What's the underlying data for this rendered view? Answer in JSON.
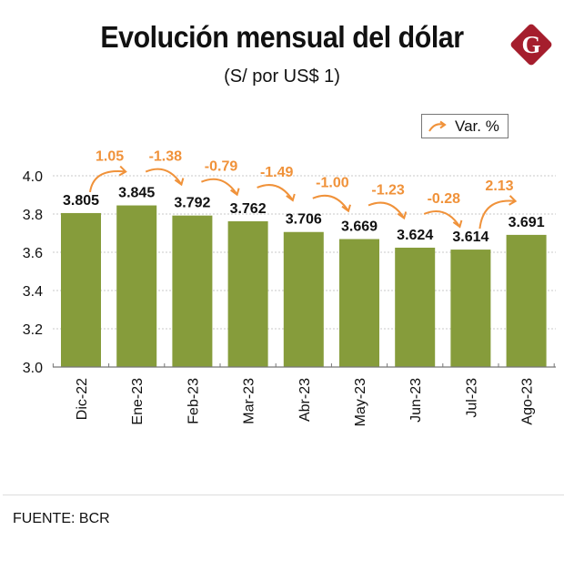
{
  "header": {
    "title": "Evolución mensual del dólar",
    "subtitle": "(S/ por US$ 1)",
    "logo_icon": "g-diamond-logo-icon",
    "logo_letter": "G"
  },
  "legend": {
    "icon": "curved-arrow-icon",
    "label": "Var. %"
  },
  "colors": {
    "bar": "#869c3b",
    "variation": "#f0923a",
    "logo": "#a51e2d",
    "text": "#111111",
    "grid": "#c8c8c8"
  },
  "chart_data": {
    "type": "bar",
    "title": "Evolución mensual del dólar",
    "subtitle": "(S/ por US$ 1)",
    "xlabel": "",
    "ylabel": "",
    "categories": [
      "Dic-22",
      "Ene-23",
      "Feb-23",
      "Mar-23",
      "Abr-23",
      "May-23",
      "Jun-23",
      "Jul-23",
      "Ago-23"
    ],
    "values": [
      3.805,
      3.845,
      3.792,
      3.762,
      3.706,
      3.669,
      3.624,
      3.614,
      3.691
    ],
    "value_labels": [
      "3.805",
      "3.845",
      "3.792",
      "3.762",
      "3.706",
      "3.669",
      "3.624",
      "3.614",
      "3.691"
    ],
    "variations": [
      {
        "from": "Dic-22",
        "to": "Ene-23",
        "value": 1.05,
        "label": "1.05"
      },
      {
        "from": "Ene-23",
        "to": "Feb-23",
        "value": -1.38,
        "label": "-1.38"
      },
      {
        "from": "Feb-23",
        "to": "Mar-23",
        "value": -0.79,
        "label": "-0.79"
      },
      {
        "from": "Mar-23",
        "to": "Abr-23",
        "value": -1.49,
        "label": "-1.49"
      },
      {
        "from": "Abr-23",
        "to": "May-23",
        "value": -1.0,
        "label": "-1.00"
      },
      {
        "from": "May-23",
        "to": "Jun-23",
        "value": -1.23,
        "label": "-1.23"
      },
      {
        "from": "Jun-23",
        "to": "Jul-23",
        "value": -0.28,
        "label": "-0.28"
      },
      {
        "from": "Jul-23",
        "to": "Ago-23",
        "value": 2.13,
        "label": "2.13"
      }
    ],
    "variation_legend": "Var. %",
    "ylim": [
      3.0,
      4.0
    ],
    "yticks": [
      3.0,
      3.2,
      3.4,
      3.6,
      3.8,
      4.0
    ],
    "ytick_labels": [
      "3.0",
      "3.2",
      "3.4",
      "3.6",
      "3.8",
      "4.0"
    ],
    "grid": true,
    "legend_position": "top-right"
  },
  "footer": {
    "source": "FUENTE: BCR"
  }
}
